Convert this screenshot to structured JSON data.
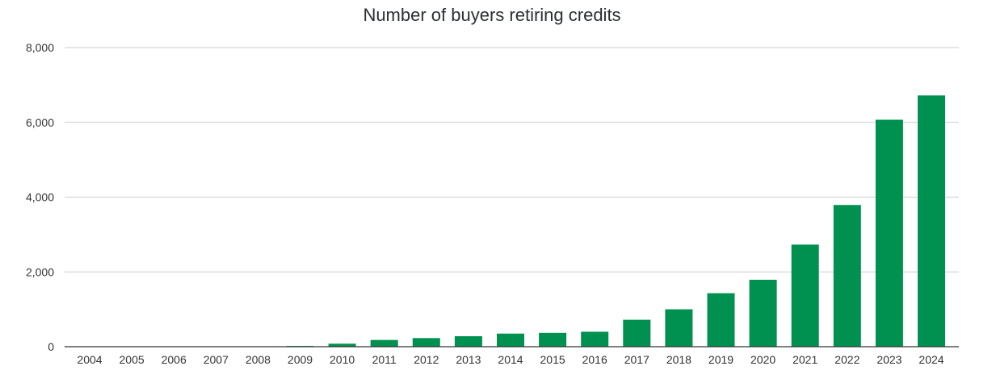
{
  "chart_data": {
    "type": "bar",
    "title": "Number of buyers retiring credits",
    "xlabel": "",
    "ylabel": "",
    "categories": [
      "2004",
      "2005",
      "2006",
      "2007",
      "2008",
      "2009",
      "2010",
      "2011",
      "2012",
      "2013",
      "2014",
      "2015",
      "2016",
      "2017",
      "2018",
      "2019",
      "2020",
      "2021",
      "2022",
      "2023",
      "2024"
    ],
    "values": [
      2,
      3,
      4,
      4,
      6,
      20,
      80,
      180,
      230,
      280,
      350,
      370,
      400,
      720,
      1000,
      1430,
      1790,
      2730,
      3790,
      6070,
      6720
    ],
    "ylim": [
      0,
      8000
    ],
    "yticks": [
      "0",
      "2,000",
      "4,000",
      "6,000",
      "8,000"
    ],
    "ytick_values": [
      0,
      2000,
      4000,
      6000,
      8000
    ],
    "grid": true,
    "legend": "none",
    "bar_color": "#009150",
    "grid_color": "#cccccc",
    "axis_color": "#333333"
  }
}
